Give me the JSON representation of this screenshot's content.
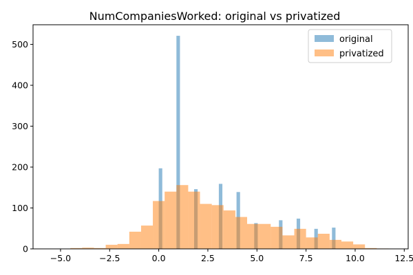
{
  "chart_data": {
    "type": "bar",
    "title": "NumCompaniesWorked: original vs privatized",
    "xlabel": "",
    "ylabel": "",
    "xlim": [
      -6.4,
      12.7
    ],
    "ylim": [
      0,
      548
    ],
    "grid": false,
    "legend_position": "top-right",
    "x_ticks": [
      {
        "value": -5.0,
        "label": "−5.0"
      },
      {
        "value": -2.5,
        "label": "−2.5"
      },
      {
        "value": 0.0,
        "label": "0.0"
      },
      {
        "value": 2.5,
        "label": "2.5"
      },
      {
        "value": 5.0,
        "label": "5.0"
      },
      {
        "value": 7.5,
        "label": "7.5"
      },
      {
        "value": 10.0,
        "label": "10.0"
      },
      {
        "value": 12.5,
        "label": "12.5"
      }
    ],
    "y_ticks": [
      {
        "value": 0,
        "label": "0"
      },
      {
        "value": 100,
        "label": "100"
      },
      {
        "value": 200,
        "label": "200"
      },
      {
        "value": 300,
        "label": "300"
      },
      {
        "value": 400,
        "label": "400"
      },
      {
        "value": 500,
        "label": "500"
      }
    ],
    "series": [
      {
        "name": "original",
        "color": "#1f77b4",
        "opacity": 0.5,
        "bars": [
          {
            "x0": 0.0,
            "x1": 0.18,
            "value": 197
          },
          {
            "x0": 0.9,
            "x1": 1.08,
            "value": 521
          },
          {
            "x0": 1.8,
            "x1": 1.98,
            "value": 146
          },
          {
            "x0": 3.06,
            "x1": 3.24,
            "value": 159
          },
          {
            "x0": 3.96,
            "x1": 4.14,
            "value": 139
          },
          {
            "x0": 4.86,
            "x1": 5.04,
            "value": 63
          },
          {
            "x0": 6.12,
            "x1": 6.3,
            "value": 70
          },
          {
            "x0": 7.02,
            "x1": 7.2,
            "value": 74
          },
          {
            "x0": 7.92,
            "x1": 8.1,
            "value": 49
          },
          {
            "x0": 8.82,
            "x1": 9.0,
            "value": 52
          }
        ]
      },
      {
        "name": "privatized",
        "color": "#ff7f0e",
        "opacity": 0.5,
        "bars": [
          {
            "x0": -4.5,
            "x1": -3.9,
            "value": 2
          },
          {
            "x0": -3.9,
            "x1": -3.3,
            "value": 3
          },
          {
            "x0": -3.3,
            "x1": -2.7,
            "value": 2
          },
          {
            "x0": -2.7,
            "x1": -2.1,
            "value": 10
          },
          {
            "x0": -2.1,
            "x1": -1.5,
            "value": 12
          },
          {
            "x0": -1.5,
            "x1": -0.9,
            "value": 42
          },
          {
            "x0": -0.9,
            "x1": -0.3,
            "value": 57
          },
          {
            "x0": -0.3,
            "x1": 0.3,
            "value": 117
          },
          {
            "x0": 0.3,
            "x1": 0.9,
            "value": 140
          },
          {
            "x0": 0.9,
            "x1": 1.5,
            "value": 156
          },
          {
            "x0": 1.5,
            "x1": 2.1,
            "value": 140
          },
          {
            "x0": 2.1,
            "x1": 2.7,
            "value": 110
          },
          {
            "x0": 2.7,
            "x1": 3.3,
            "value": 107
          },
          {
            "x0": 3.3,
            "x1": 3.9,
            "value": 94
          },
          {
            "x0": 3.9,
            "x1": 4.5,
            "value": 78
          },
          {
            "x0": 4.5,
            "x1": 5.1,
            "value": 61
          },
          {
            "x0": 5.1,
            "x1": 5.7,
            "value": 61
          },
          {
            "x0": 5.7,
            "x1": 6.3,
            "value": 54
          },
          {
            "x0": 6.3,
            "x1": 6.9,
            "value": 33
          },
          {
            "x0": 6.9,
            "x1": 7.5,
            "value": 49
          },
          {
            "x0": 7.5,
            "x1": 8.1,
            "value": 28
          },
          {
            "x0": 8.1,
            "x1": 8.7,
            "value": 37
          },
          {
            "x0": 8.7,
            "x1": 9.3,
            "value": 22
          },
          {
            "x0": 9.3,
            "x1": 9.9,
            "value": 18
          },
          {
            "x0": 9.9,
            "x1": 10.5,
            "value": 11
          },
          {
            "x0": 10.5,
            "x1": 11.1,
            "value": 2
          },
          {
            "x0": 11.1,
            "x1": 11.7,
            "value": 1
          }
        ]
      }
    ]
  }
}
